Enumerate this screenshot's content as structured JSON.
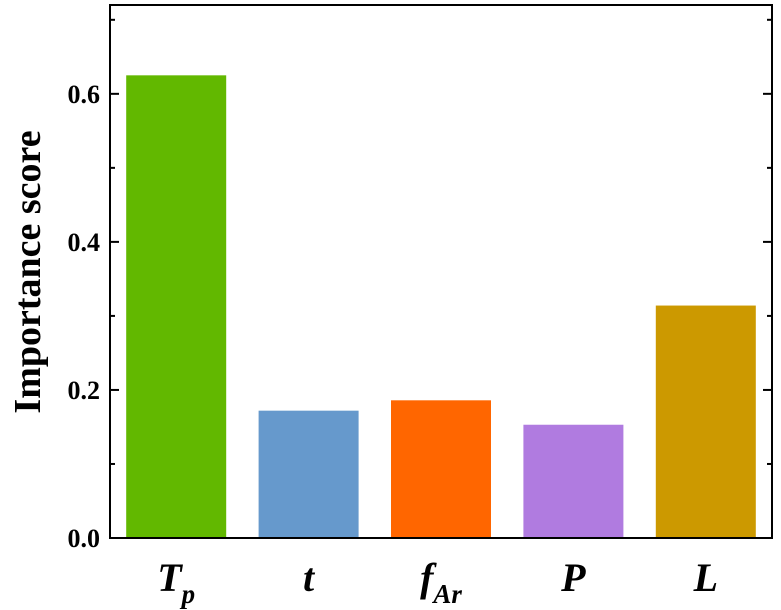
{
  "chart_data": {
    "type": "bar",
    "categories": [
      "Tp",
      "t",
      "fAr",
      "P",
      "L"
    ],
    "category_labels": [
      {
        "main": "T",
        "sub": "p"
      },
      {
        "main": "t",
        "sub": ""
      },
      {
        "main": "f",
        "sub": "Ar"
      },
      {
        "main": "P",
        "sub": ""
      },
      {
        "main": "L",
        "sub": ""
      }
    ],
    "values": [
      0.625,
      0.172,
      0.186,
      0.153,
      0.314
    ],
    "colors": [
      "#62b800",
      "#6699cc",
      "#ff6600",
      "#b07be0",
      "#cc9900"
    ],
    "title": "",
    "xlabel": "",
    "ylabel": "Importance score",
    "ylim": [
      0,
      0.72
    ],
    "yticks": [
      0.0,
      0.2,
      0.4,
      0.6
    ],
    "ytick_labels": [
      "0.0",
      "0.2",
      "0.4",
      "0.6"
    ],
    "grid": false,
    "legend": "none"
  }
}
